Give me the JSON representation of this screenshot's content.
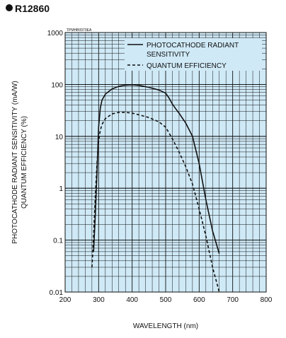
{
  "header": {
    "model": "R12860"
  },
  "chart_data": {
    "type": "line",
    "code_label": "TPMHB0979EA",
    "xlabel": "WAVELENGTH (nm)",
    "ylabel_line1": "PHOTOCATHODE RADIANT SENSITIVITY (mA/W)",
    "ylabel_line2": "QUANTUM EFFICIENCY (%)",
    "xlim": [
      200,
      800
    ],
    "ylim": [
      0.01,
      1000
    ],
    "y_scale": "log",
    "grid": true,
    "background_color": "#cfe9f6",
    "legend_position": "top-right",
    "x_ticks": [
      "200",
      "300",
      "400",
      "500",
      "600",
      "700",
      "800"
    ],
    "y_ticks": [
      "0.01",
      "0.1",
      "1",
      "10",
      "100",
      "1000"
    ],
    "legend": {
      "solid_line1": "PHOTOCATHODE RADIANT",
      "solid_line2": "SENSITIVITY",
      "dashed": "QUANTUM EFFICIENCY"
    },
    "series": [
      {
        "style": "solid",
        "x": [
          285,
          290,
          295,
          300,
          305,
          310,
          320,
          340,
          360,
          380,
          400,
          420,
          450,
          480,
          500,
          510,
          520,
          530,
          540,
          560,
          580,
          600,
          620,
          640,
          660
        ],
        "y": [
          0.06,
          0.3,
          2,
          15,
          35,
          50,
          65,
          82,
          92,
          97,
          98,
          96,
          88,
          78,
          68,
          55,
          42,
          34,
          28,
          18,
          10,
          3,
          0.6,
          0.15,
          0.055
        ]
      },
      {
        "style": "dashed",
        "x": [
          280,
          285,
          290,
          295,
          300,
          305,
          310,
          320,
          340,
          360,
          380,
          400,
          420,
          450,
          480,
          500,
          520,
          540,
          560,
          580,
          600,
          620,
          640,
          660
        ],
        "y": [
          0.03,
          0.12,
          0.7,
          3,
          8,
          13,
          17,
          22,
          27,
          29,
          29,
          28,
          26,
          23,
          19,
          15,
          9,
          5,
          2.6,
          1.2,
          0.4,
          0.12,
          0.03,
          0.01
        ]
      }
    ]
  }
}
